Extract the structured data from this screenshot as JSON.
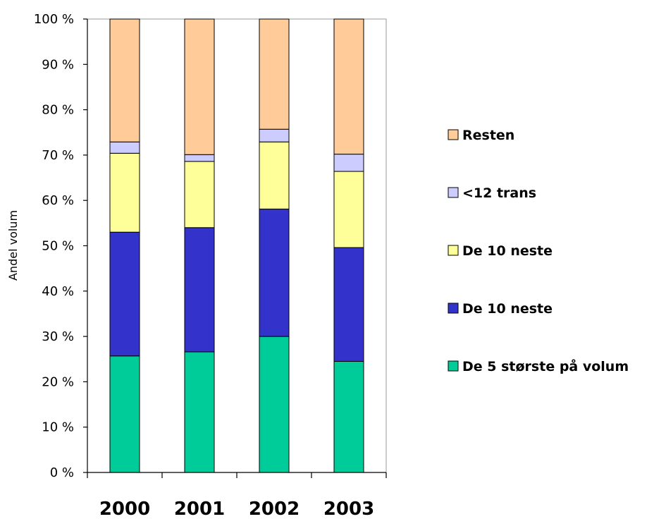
{
  "chart_data": {
    "type": "bar",
    "stacked": true,
    "percent": true,
    "categories": [
      "2000",
      "2001",
      "2002",
      "2003"
    ],
    "ylabel": "Andel volum",
    "xlabel": "",
    "title": "",
    "ylim": [
      0,
      100
    ],
    "yticks": [
      "0 %",
      "10 %",
      "20 %",
      "30 %",
      "40 %",
      "50 %",
      "60 %",
      "70 %",
      "80 %",
      "90 %",
      "100 %"
    ],
    "legend_position": "right",
    "series": [
      {
        "name": "De 5 største på volum",
        "color": "#00cc99",
        "values": [
          25.7,
          26.6,
          30.0,
          24.5
        ]
      },
      {
        "name": "De 10 neste",
        "color": "#3333cc",
        "values": [
          27.3,
          27.4,
          28.1,
          25.1
        ]
      },
      {
        "name": "De 10 neste",
        "color": "#ffff99",
        "values": [
          17.4,
          14.6,
          14.8,
          16.8
        ]
      },
      {
        "name": "<12 trans",
        "color": "#ccccff",
        "values": [
          2.5,
          1.5,
          2.8,
          3.8
        ]
      },
      {
        "name": "Resten",
        "color": "#ffcc99",
        "values": [
          27.1,
          29.9,
          24.3,
          29.8
        ]
      }
    ]
  }
}
